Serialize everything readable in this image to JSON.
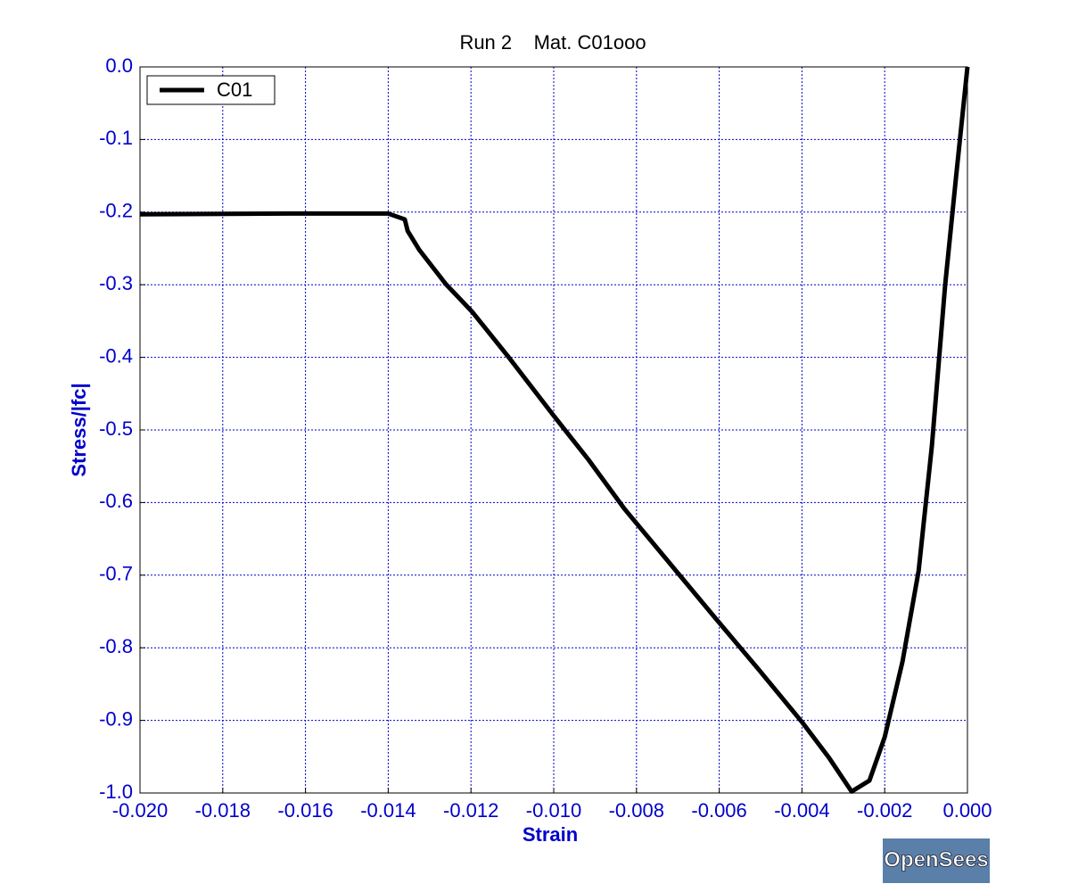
{
  "chart_data": {
    "type": "line",
    "title": "Run 2    Mat. C01ooo",
    "x_label": "Strain",
    "y_label": "Stress/|fc|",
    "x": [
      -0.02,
      -0.01644,
      -0.014,
      -0.0136,
      -0.01353,
      -0.01325,
      -0.01261,
      -0.01196,
      -0.0111,
      -0.01002,
      -0.00916,
      -0.0083,
      -0.00722,
      -0.00614,
      -0.00506,
      -0.00399,
      -0.00334,
      -0.0028,
      -0.00237,
      -0.002,
      -0.00157,
      -0.00118,
      -0.00086,
      -0.00054,
      -0.00028,
      0
    ],
    "series": [
      {
        "name": "C01",
        "color": "#000000",
        "values": [
          -0.203,
          -0.202,
          -0.202,
          -0.21,
          -0.226,
          -0.252,
          -0.299,
          -0.338,
          -0.399,
          -0.479,
          -0.541,
          -0.608,
          -0.682,
          -0.756,
          -0.829,
          -0.903,
          -0.952,
          -0.998,
          -0.983,
          -0.923,
          -0.819,
          -0.694,
          -0.522,
          -0.301,
          -0.154,
          0
        ]
      }
    ],
    "xlim": [
      -0.02,
      0
    ],
    "xticks": [
      {
        "value": -0.02,
        "label": "-0.020"
      },
      {
        "value": -0.018,
        "label": "-0.018"
      },
      {
        "value": -0.016,
        "label": "-0.016"
      },
      {
        "value": -0.014,
        "label": "-0.014"
      },
      {
        "value": -0.012,
        "label": "-0.012"
      },
      {
        "value": -0.01,
        "label": "-0.010"
      },
      {
        "value": -0.008,
        "label": "-0.008"
      },
      {
        "value": -0.006,
        "label": "-0.006"
      },
      {
        "value": -0.004,
        "label": "-0.004"
      },
      {
        "value": -0.002,
        "label": "-0.002"
      },
      {
        "value": 0,
        "label": "0.000"
      }
    ],
    "ylim": [
      -1,
      0
    ],
    "yticks": [
      {
        "value": 0,
        "label": "0.0"
      },
      -0.1,
      -0.2,
      -0.3,
      -0.4,
      -0.5,
      -0.6,
      -0.7,
      -0.8,
      -0.9,
      {
        "value": -1,
        "label": "-1.0"
      }
    ],
    "grid": true,
    "legend": "upper left",
    "axis_color": "#0000cc",
    "watermark": "OpenSees"
  }
}
